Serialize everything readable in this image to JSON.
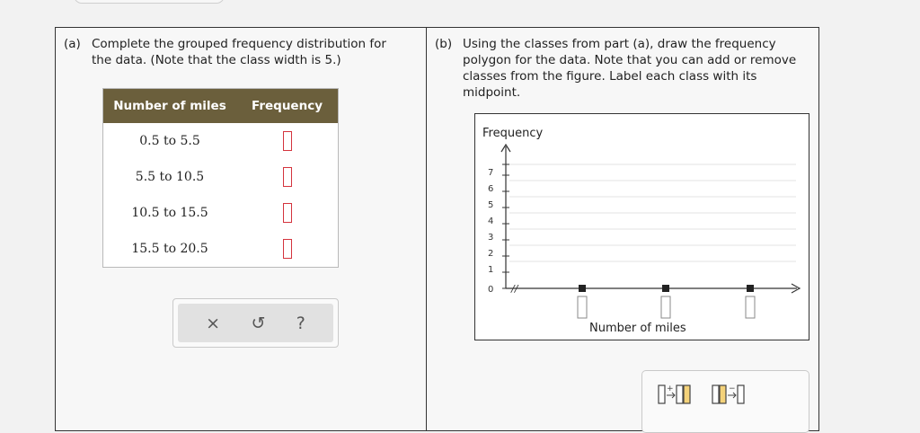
{
  "part_a": {
    "label": "(a)",
    "line1": "Complete the grouped frequency distribution for",
    "line2": "the data. (Note that the class width is 5.)"
  },
  "part_b": {
    "label": "(b)",
    "line1": "Using the classes from part (a), draw the frequency",
    "line2": "polygon for the data. Note that you can add or remove",
    "line3": "classes from the figure. Label each class with its",
    "line4": "midpoint."
  },
  "table": {
    "headers": [
      "Number of miles",
      "Frequency"
    ],
    "rows": [
      {
        "class": "0.5 to 5.5",
        "frequency": ""
      },
      {
        "class": "5.5 to 10.5",
        "frequency": ""
      },
      {
        "class": "10.5 to 15.5",
        "frequency": ""
      },
      {
        "class": "15.5 to 20.5",
        "frequency": ""
      }
    ]
  },
  "controls": {
    "clear": "×",
    "undo": "↺",
    "help": "?"
  },
  "graph": {
    "y_label": "Frequency",
    "x_label": "Number of miles",
    "y_ticks": [
      "0",
      "1",
      "2",
      "3",
      "4",
      "5",
      "6",
      "7"
    ],
    "axis_break": "//",
    "midpoint_inputs": [
      "",
      "",
      ""
    ]
  },
  "colors": {
    "header_bg": "#6b5f3c",
    "answer_box_border": "#d4343d",
    "axis": "#333333",
    "gridline": "#e3e3e3"
  },
  "tools": {
    "add_class_icon": "add-class-icon",
    "remove_class_icon": "remove-class-icon"
  }
}
